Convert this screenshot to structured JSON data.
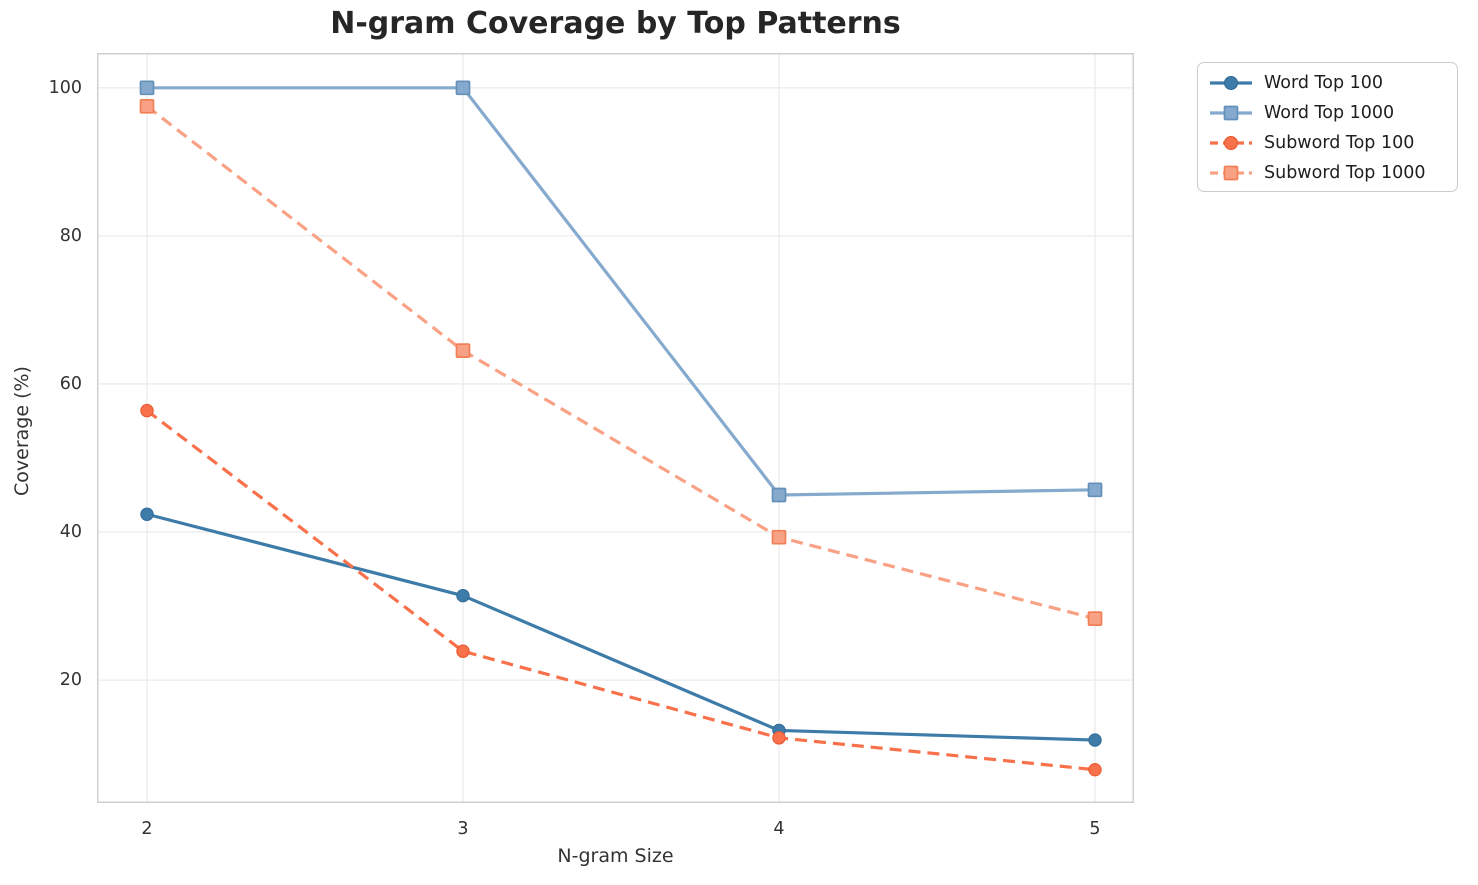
{
  "chart_data": {
    "type": "line",
    "title": "N-gram Coverage by Top Patterns",
    "xlabel": "N-gram Size",
    "ylabel": "Coverage (%)",
    "x": [
      2,
      3,
      4,
      5
    ],
    "x_tick_labels": [
      "2",
      "3",
      "4",
      "5"
    ],
    "yticks": [
      20,
      40,
      60,
      80,
      100
    ],
    "ylim": [
      3.4,
      104.7
    ],
    "xlim": [
      2,
      5
    ],
    "grid": true,
    "legend_position": "outside-top-right",
    "series": [
      {
        "name": "Word Top 100",
        "values": [
          42.4,
          31.4,
          13.2,
          11.9
        ],
        "color": "#3d7ba9",
        "edge_color": "#336a96",
        "marker": "circle",
        "dashed": false
      },
      {
        "name": "Word Top 1000",
        "values": [
          100.0,
          100.0,
          45.0,
          45.7
        ],
        "color": "#85aacd",
        "edge_color": "#6490ba",
        "marker": "square",
        "dashed": false
      },
      {
        "name": "Subword Top 100",
        "values": [
          56.4,
          23.9,
          12.2,
          7.9
        ],
        "color": "#f8714b",
        "edge_color": "#e8552c",
        "marker": "circle",
        "dashed": true
      },
      {
        "name": "Subword Top 1000",
        "values": [
          97.5,
          64.5,
          39.3,
          28.3
        ],
        "color": "#f9a184",
        "edge_color": "#f28057",
        "marker": "square",
        "dashed": true
      }
    ],
    "style": {
      "grid_color": "#ececec",
      "spine_color": "#cfcfcf",
      "title_color": "#262626",
      "tick_color": "#333333"
    }
  }
}
